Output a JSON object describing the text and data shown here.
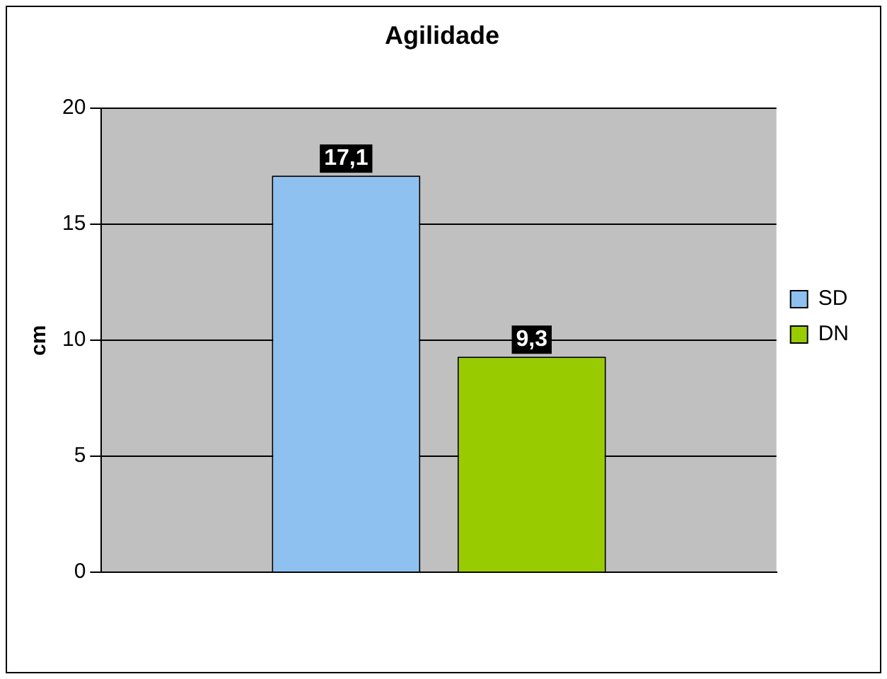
{
  "chart_data": {
    "type": "bar",
    "title": "Agilidade",
    "ylabel": "cm",
    "categories": [
      null
    ],
    "series": [
      {
        "name": "SD",
        "color": "#8fc1f0",
        "values": [
          17.1
        ],
        "value_labels": [
          "17,1"
        ]
      },
      {
        "name": "DN",
        "color": "#99cc00",
        "values": [
          9.3
        ],
        "value_labels": [
          "9,3"
        ]
      }
    ],
    "ylim": [
      0,
      20
    ],
    "yticks": [
      0,
      5,
      10,
      15,
      20
    ],
    "grid": "y",
    "legend": "right"
  }
}
